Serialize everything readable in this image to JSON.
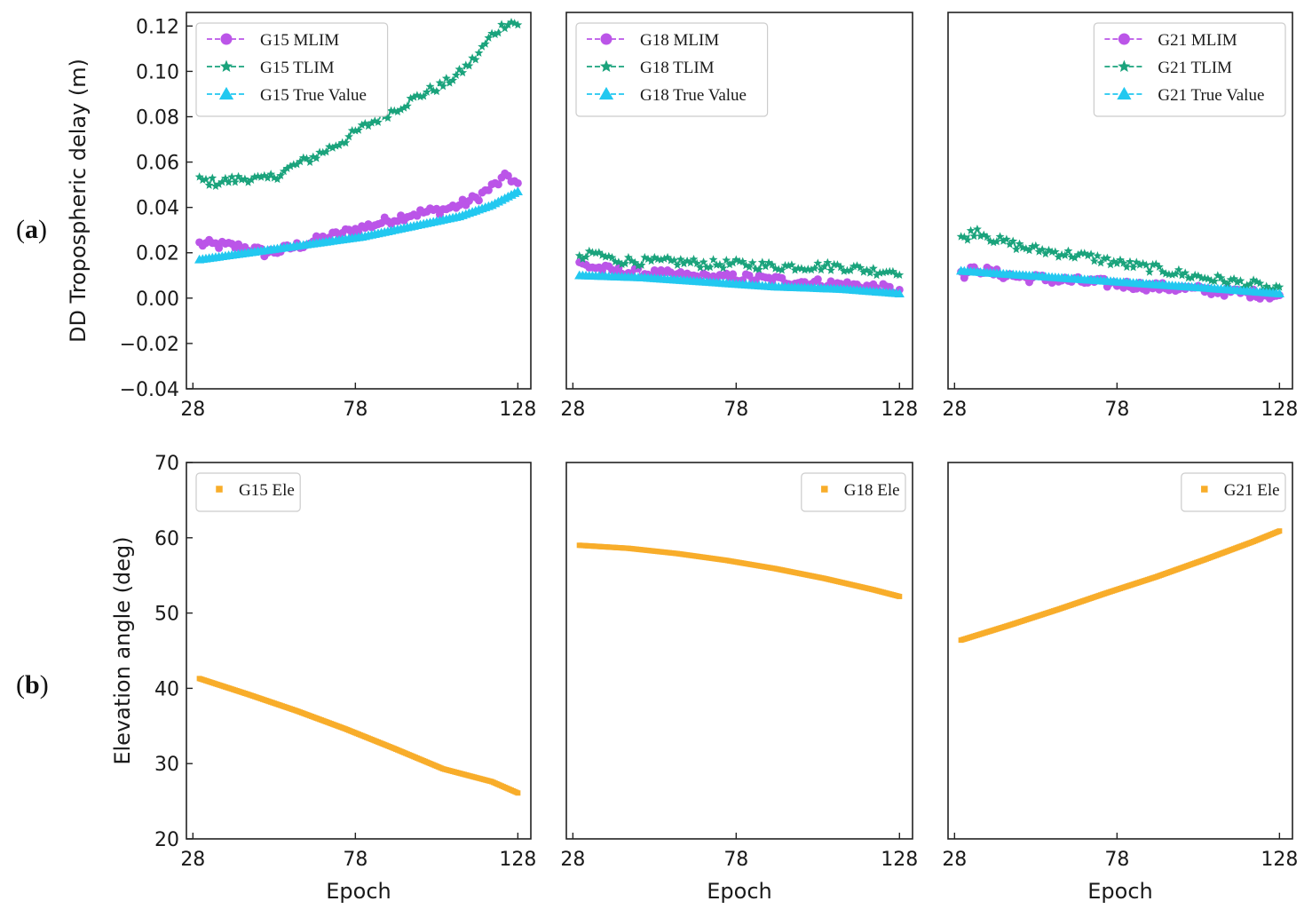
{
  "panel_labels": {
    "a": "(a)",
    "b": "(b)"
  },
  "colors": {
    "mlim": "#bb55e8",
    "tlim": "#1aa37c",
    "true": "#22c8f0",
    "ele": "#f8ad2a",
    "axis": "#222222",
    "legend_border": "#cccccc"
  },
  "chart_data": [
    {
      "id": "a1",
      "type": "line",
      "row": "a",
      "title": "",
      "xlabel": "",
      "ylabel": "DD Tropospheric delay (m)",
      "xlim": [
        26,
        132
      ],
      "ylim": [
        -0.04,
        0.126
      ],
      "xticks": [
        28,
        78,
        128
      ],
      "yticks": [
        -0.04,
        -0.02,
        0.0,
        0.02,
        0.04,
        0.06,
        0.08,
        0.1,
        0.12
      ],
      "ytick_labels": [
        "−0.04",
        "−0.02",
        "0.00",
        "0.02",
        "0.04",
        "0.06",
        "0.08",
        "0.10",
        "0.12"
      ],
      "legend": "top-left",
      "series": [
        {
          "name": "G15 MLIM",
          "key": "mlim",
          "marker": "circle",
          "x": [
            30,
            40,
            45,
            50,
            55,
            60,
            65,
            70,
            75,
            80,
            85,
            90,
            95,
            100,
            105,
            110,
            115,
            120,
            125,
            128
          ],
          "y": [
            0.024,
            0.023,
            0.022,
            0.02,
            0.021,
            0.023,
            0.025,
            0.027,
            0.029,
            0.031,
            0.033,
            0.035,
            0.037,
            0.038,
            0.039,
            0.041,
            0.044,
            0.049,
            0.054,
            0.05
          ]
        },
        {
          "name": "G15 TLIM",
          "key": "tlim",
          "marker": "star",
          "x": [
            30,
            35,
            40,
            45,
            50,
            55,
            60,
            65,
            70,
            75,
            80,
            85,
            90,
            95,
            100,
            105,
            110,
            115,
            120,
            125,
            128
          ],
          "y": [
            0.052,
            0.051,
            0.052,
            0.053,
            0.052,
            0.055,
            0.059,
            0.062,
            0.066,
            0.07,
            0.075,
            0.079,
            0.083,
            0.087,
            0.091,
            0.094,
            0.099,
            0.106,
            0.116,
            0.122,
            0.121
          ]
        },
        {
          "name": "G15 True Value",
          "key": "true",
          "marker": "triangle",
          "x": [
            30,
            40,
            50,
            60,
            70,
            80,
            90,
            100,
            110,
            120,
            128
          ],
          "y": [
            0.017,
            0.019,
            0.021,
            0.023,
            0.025,
            0.027,
            0.03,
            0.033,
            0.036,
            0.041,
            0.047
          ]
        }
      ]
    },
    {
      "id": "a2",
      "type": "line",
      "row": "a",
      "title": "",
      "xlabel": "",
      "ylabel": "",
      "xlim": [
        26,
        132
      ],
      "ylim": [
        -0.04,
        0.126
      ],
      "xticks": [
        28,
        78,
        128
      ],
      "yticks": [],
      "legend": "top-left",
      "series": [
        {
          "name": "G18 MLIM",
          "key": "mlim",
          "marker": "circle",
          "x": [
            30,
            40,
            50,
            60,
            70,
            80,
            90,
            100,
            110,
            120,
            128
          ],
          "y": [
            0.015,
            0.012,
            0.011,
            0.01,
            0.009,
            0.009,
            0.008,
            0.007,
            0.006,
            0.005,
            0.003
          ]
        },
        {
          "name": "G18 TLIM",
          "key": "tlim",
          "marker": "star",
          "x": [
            30,
            35,
            40,
            50,
            60,
            70,
            80,
            90,
            100,
            110,
            120,
            128
          ],
          "y": [
            0.017,
            0.02,
            0.017,
            0.016,
            0.016,
            0.015,
            0.015,
            0.014,
            0.014,
            0.014,
            0.012,
            0.012
          ]
        },
        {
          "name": "G18 True Value",
          "key": "true",
          "marker": "triangle",
          "x": [
            30,
            50,
            70,
            90,
            110,
            128
          ],
          "y": [
            0.01,
            0.009,
            0.007,
            0.005,
            0.004,
            0.002
          ]
        }
      ]
    },
    {
      "id": "a3",
      "type": "line",
      "row": "a",
      "title": "",
      "xlabel": "",
      "ylabel": "",
      "xlim": [
        26,
        132
      ],
      "ylim": [
        -0.04,
        0.126
      ],
      "xticks": [
        28,
        78,
        128
      ],
      "yticks": [],
      "legend": "top-right",
      "series": [
        {
          "name": "G21 MLIM",
          "key": "mlim",
          "marker": "circle",
          "x": [
            30,
            35,
            40,
            50,
            60,
            70,
            80,
            90,
            100,
            110,
            120,
            128
          ],
          "y": [
            0.01,
            0.013,
            0.011,
            0.009,
            0.008,
            0.007,
            0.006,
            0.005,
            0.004,
            0.003,
            0.002,
            0.001
          ]
        },
        {
          "name": "G21 TLIM",
          "key": "tlim",
          "marker": "star",
          "x": [
            30,
            35,
            40,
            45,
            50,
            60,
            70,
            80,
            90,
            100,
            110,
            120,
            128
          ],
          "y": [
            0.026,
            0.03,
            0.026,
            0.024,
            0.022,
            0.02,
            0.018,
            0.015,
            0.013,
            0.01,
            0.008,
            0.006,
            0.003
          ]
        },
        {
          "name": "G21 True Value",
          "key": "true",
          "marker": "triangle",
          "x": [
            30,
            50,
            70,
            90,
            110,
            128
          ],
          "y": [
            0.012,
            0.01,
            0.008,
            0.006,
            0.004,
            0.002
          ]
        }
      ]
    },
    {
      "id": "b1",
      "type": "scatter",
      "row": "b",
      "title": "",
      "xlabel": "Epoch",
      "ylabel": "Elevation angle (deg)",
      "xlim": [
        26,
        132
      ],
      "ylim": [
        20,
        70
      ],
      "xticks": [
        28,
        78,
        128
      ],
      "yticks": [
        20,
        30,
        40,
        50,
        60,
        70
      ],
      "ytick_labels": [
        "20",
        "30",
        "40",
        "50",
        "60",
        "70"
      ],
      "legend": "top-left",
      "series": [
        {
          "name": "G15 Ele",
          "key": "ele",
          "marker": "square",
          "x": [
            30,
            45,
            60,
            75,
            90,
            105,
            120,
            128
          ],
          "y": [
            41.3,
            39.2,
            37.0,
            34.6,
            32.0,
            29.3,
            27.6,
            26.1
          ]
        }
      ]
    },
    {
      "id": "b2",
      "type": "scatter",
      "row": "b",
      "title": "",
      "xlabel": "Epoch",
      "ylabel": "",
      "xlim": [
        26,
        132
      ],
      "ylim": [
        20,
        70
      ],
      "xticks": [
        28,
        78,
        128
      ],
      "yticks": [],
      "legend": "top-right",
      "series": [
        {
          "name": "G18 Ele",
          "key": "ele",
          "marker": "square",
          "x": [
            30,
            45,
            60,
            75,
            90,
            105,
            120,
            128
          ],
          "y": [
            59.0,
            58.6,
            57.9,
            57.0,
            55.9,
            54.6,
            53.1,
            52.2
          ]
        }
      ]
    },
    {
      "id": "b3",
      "type": "scatter",
      "row": "b",
      "title": "",
      "xlabel": "Epoch",
      "ylabel": "",
      "xlim": [
        26,
        132
      ],
      "ylim": [
        20,
        70
      ],
      "xticks": [
        28,
        78,
        128
      ],
      "yticks": [],
      "legend": "top-right",
      "series": [
        {
          "name": "G21 Ele",
          "key": "ele",
          "marker": "square",
          "x": [
            30,
            45,
            60,
            75,
            90,
            105,
            120,
            128
          ],
          "y": [
            46.4,
            48.4,
            50.5,
            52.7,
            54.8,
            57.1,
            59.5,
            60.9
          ]
        }
      ]
    }
  ]
}
